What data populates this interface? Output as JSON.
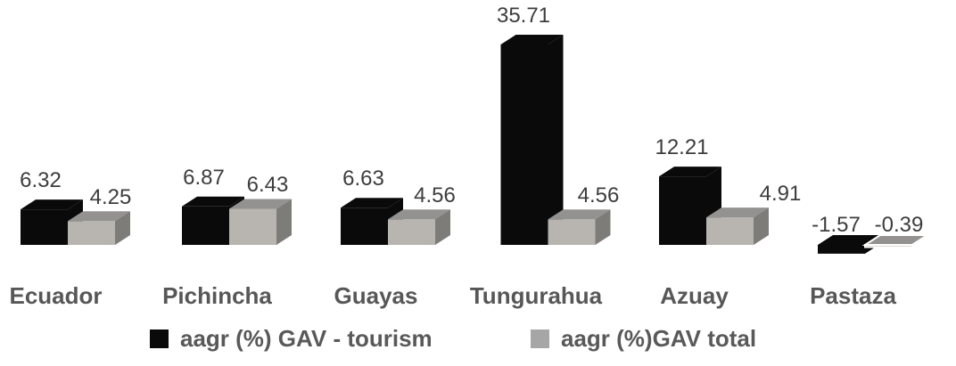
{
  "chart_data": {
    "type": "bar",
    "variant": "3d-clustered-column",
    "title": "",
    "xlabel": "",
    "ylabel": "",
    "axes_visible": false,
    "gridlines": false,
    "value_labels": true,
    "decimals": 2,
    "legend_position": "bottom",
    "background": "#ffffff",
    "categories": [
      "Ecuador",
      "Pichincha",
      "Guayas",
      "Tungurahua",
      "Azuay",
      "Pastaza"
    ],
    "series": [
      {
        "name": "aagr (%) GAV - tourism",
        "key": "gav-tourism",
        "color": "#0a0a0a",
        "faces": {
          "front": "#0a0a0a",
          "top": "#0a0a0a",
          "side": "#0a0a0a"
        },
        "values": [
          6.32,
          6.87,
          6.63,
          35.71,
          12.21,
          -1.57
        ]
      },
      {
        "name": "aagr (%)GAV total",
        "key": "gav-total",
        "color": "#a6a6a6",
        "faces": {
          "front": "#b8b5b1",
          "top": "#949290",
          "side": "#7e7c79"
        },
        "values": [
          4.25,
          6.43,
          4.56,
          4.56,
          4.91,
          -0.39
        ]
      }
    ],
    "colors": {
      "value_label_text": "#3d3d3d",
      "category_label_text": "#575757",
      "legend_text": "#595959",
      "background": "#ffffff"
    }
  }
}
